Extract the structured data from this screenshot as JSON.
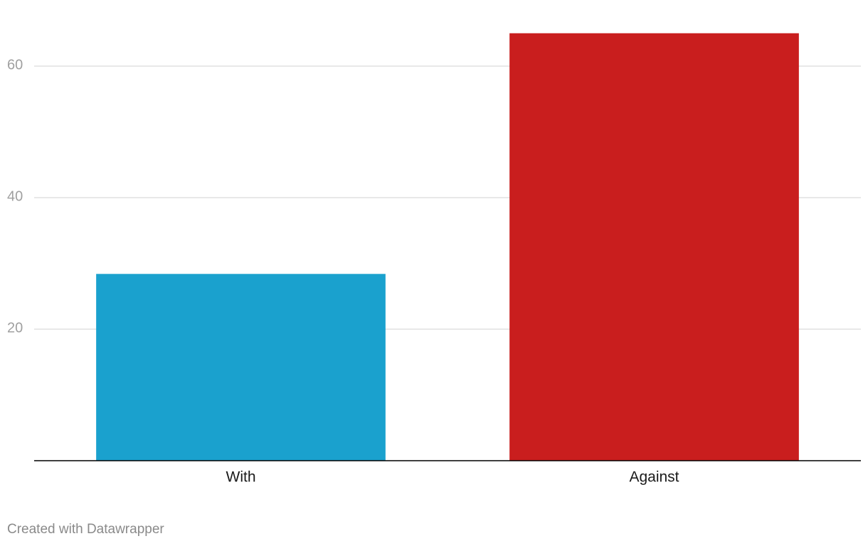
{
  "chart_data": {
    "type": "bar",
    "categories": [
      "With",
      "Against"
    ],
    "values": [
      28.4,
      65
    ],
    "colors": [
      "#1aa1ce",
      "#c91e1e"
    ],
    "ylim": [
      0,
      65
    ],
    "yticks": [
      20,
      40,
      60
    ],
    "grid": true,
    "credit": "Created with Datawrapper"
  }
}
